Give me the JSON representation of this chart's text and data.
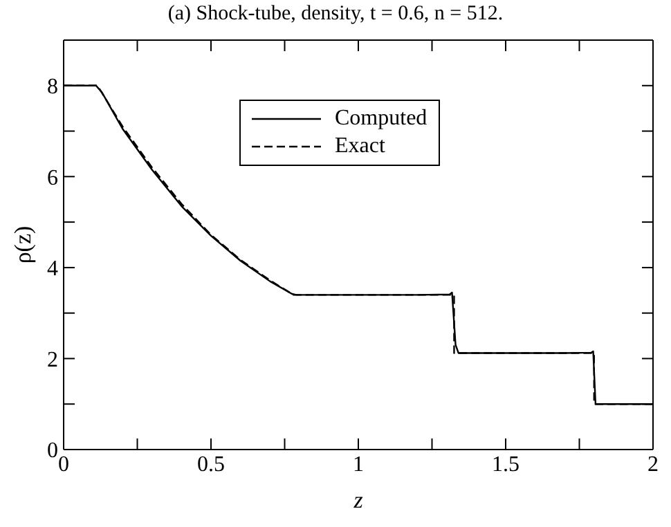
{
  "chart_data": {
    "type": "line",
    "title": "(a) Shock-tube, density, t = 0.6, n = 512.",
    "xlabel": "z",
    "ylabel": "ρ(z)",
    "xlim": [
      0,
      2
    ],
    "xticks": [
      0,
      {
        "value": 0.25,
        "label": null
      },
      0.5,
      {
        "value": 0.75,
        "label": null
      },
      1,
      {
        "value": 1.25,
        "label": null
      },
      1.5,
      {
        "value": 1.75,
        "label": null
      },
      2
    ],
    "ylim": [
      0,
      9
    ],
    "yticks": [
      0,
      {
        "value": 1,
        "label": null
      },
      2,
      {
        "value": 3,
        "label": null
      },
      4,
      {
        "value": 5,
        "label": null
      },
      6,
      {
        "value": 7,
        "label": null
      },
      8
    ],
    "legend": "top",
    "marker": "none",
    "series": [
      {
        "name": "Computed",
        "color": "#000000",
        "line_style": "solid",
        "x": [
          0,
          0.11,
          0.13,
          0.2,
          0.3,
          0.4,
          0.5,
          0.6,
          0.7,
          0.775,
          0.79,
          1.0,
          1.2,
          1.31,
          1.318,
          1.33,
          1.34,
          1.5,
          1.7,
          1.79,
          1.797,
          1.805,
          2
        ],
        "values": [
          8,
          8,
          7.85,
          7.05,
          6.15,
          5.35,
          4.7,
          4.15,
          3.7,
          3.42,
          3.4,
          3.4,
          3.4,
          3.41,
          3.45,
          2.3,
          2.12,
          2.12,
          2.12,
          2.13,
          2.16,
          1.0,
          1.0
        ]
      },
      {
        "name": "Exact",
        "color": "#000000",
        "line_style": "dashed",
        "x": [
          0,
          0.115,
          0.2,
          0.3,
          0.4,
          0.5,
          0.6,
          0.7,
          0.78,
          1.0,
          1.2,
          1.325,
          1.325,
          1.5,
          1.7,
          1.8,
          1.8,
          2
        ],
        "values": [
          8,
          8,
          7.1,
          6.2,
          5.4,
          4.72,
          4.17,
          3.72,
          3.4,
          3.4,
          3.4,
          3.4,
          2.12,
          2.12,
          2.12,
          2.12,
          1.0,
          1.0
        ]
      }
    ]
  }
}
